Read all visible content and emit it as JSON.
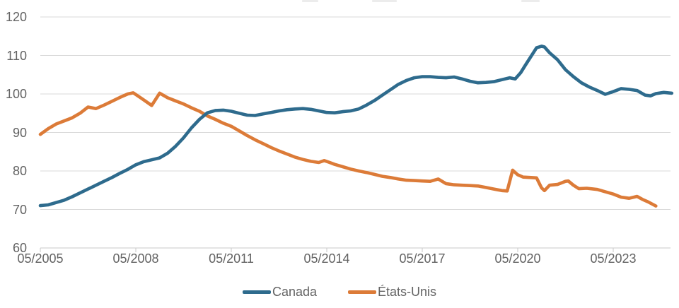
{
  "chart_data": {
    "type": "line",
    "title": "",
    "grid": "horizontal",
    "legend_position": "bottom-center",
    "ylim": [
      60,
      120
    ],
    "xlim": [
      2005.33,
      2025.13
    ],
    "y_ticks": [
      120,
      110,
      100,
      90,
      80,
      70,
      60
    ],
    "x_tick_labels": [
      "05/2005",
      "05/2008",
      "05/2011",
      "05/2014",
      "05/2017",
      "05/2020",
      "05/2023"
    ],
    "x_tick_years": [
      2005.33,
      2008.33,
      2011.33,
      2014.33,
      2017.33,
      2020.33,
      2023.33
    ],
    "series": [
      {
        "name": "États-Unis",
        "color": "#dc7b38",
        "x": [
          2005.33,
          2005.58,
          2005.83,
          2006.08,
          2006.33,
          2006.58,
          2006.83,
          2007.08,
          2007.33,
          2007.58,
          2007.83,
          2008.08,
          2008.25,
          2008.5,
          2008.83,
          2009.08,
          2009.33,
          2009.58,
          2009.83,
          2010.08,
          2010.33,
          2010.58,
          2010.83,
          2011.08,
          2011.33,
          2011.58,
          2011.83,
          2012.08,
          2012.33,
          2012.58,
          2012.83,
          2013.08,
          2013.33,
          2013.58,
          2013.83,
          2014.08,
          2014.25,
          2014.42,
          2014.58,
          2014.83,
          2015.08,
          2015.33,
          2015.58,
          2015.83,
          2016.08,
          2016.33,
          2016.58,
          2016.83,
          2017.08,
          2017.33,
          2017.58,
          2017.83,
          2018.08,
          2018.33,
          2018.58,
          2018.83,
          2019.08,
          2019.33,
          2019.58,
          2019.83,
          2020.0,
          2020.17,
          2020.33,
          2020.5,
          2020.75,
          2020.92,
          2021.08,
          2021.17,
          2021.33,
          2021.58,
          2021.83,
          2021.92,
          2022.08,
          2022.25,
          2022.5,
          2022.83,
          2023.08,
          2023.33,
          2023.58,
          2023.83,
          2024.08,
          2024.25,
          2024.42,
          2024.67
        ],
        "values": [
          89.5,
          91.0,
          92.2,
          93.0,
          93.8,
          95.0,
          96.6,
          96.2,
          97.1,
          98.1,
          99.1,
          100.0,
          100.3,
          98.9,
          97.0,
          100.2,
          99.0,
          98.2,
          97.4,
          96.4,
          95.5,
          94.3,
          93.4,
          92.4,
          91.6,
          90.4,
          89.2,
          88.1,
          87.1,
          86.1,
          85.2,
          84.4,
          83.6,
          83.0,
          82.5,
          82.2,
          82.7,
          82.2,
          81.7,
          81.1,
          80.5,
          80.0,
          79.6,
          79.1,
          78.6,
          78.3,
          77.9,
          77.6,
          77.5,
          77.4,
          77.3,
          77.9,
          76.7,
          76.4,
          76.3,
          76.2,
          76.1,
          75.7,
          75.3,
          74.9,
          74.8,
          80.2,
          79.0,
          78.4,
          78.3,
          78.2,
          75.6,
          74.9,
          76.3,
          76.5,
          77.3,
          77.4,
          76.3,
          75.4,
          75.5,
          75.2,
          74.6,
          74.0,
          73.2,
          72.9,
          73.4,
          72.6,
          72.0,
          70.9
        ]
      },
      {
        "name": "Canada",
        "color": "#2e6b8d",
        "x": [
          2005.33,
          2005.58,
          2005.83,
          2006.08,
          2006.33,
          2006.58,
          2006.83,
          2007.08,
          2007.33,
          2007.58,
          2007.83,
          2008.08,
          2008.33,
          2008.58,
          2008.83,
          2009.08,
          2009.33,
          2009.58,
          2009.83,
          2010.08,
          2010.33,
          2010.58,
          2010.83,
          2011.08,
          2011.33,
          2011.58,
          2011.83,
          2012.08,
          2012.33,
          2012.58,
          2012.83,
          2013.08,
          2013.33,
          2013.58,
          2013.83,
          2014.08,
          2014.33,
          2014.58,
          2014.83,
          2015.08,
          2015.33,
          2015.58,
          2015.83,
          2016.08,
          2016.33,
          2016.58,
          2016.83,
          2017.08,
          2017.33,
          2017.58,
          2017.83,
          2018.08,
          2018.33,
          2018.58,
          2018.83,
          2019.08,
          2019.33,
          2019.58,
          2019.83,
          2020.08,
          2020.25,
          2020.42,
          2020.58,
          2020.75,
          2020.92,
          2021.08,
          2021.17,
          2021.33,
          2021.58,
          2021.83,
          2022.08,
          2022.33,
          2022.58,
          2022.83,
          2023.08,
          2023.33,
          2023.58,
          2023.83,
          2024.08,
          2024.33,
          2024.5,
          2024.67,
          2024.92,
          2025.17
        ],
        "values": [
          71.0,
          71.2,
          71.8,
          72.4,
          73.3,
          74.3,
          75.3,
          76.3,
          77.3,
          78.3,
          79.4,
          80.4,
          81.6,
          82.4,
          82.9,
          83.4,
          84.6,
          86.4,
          88.6,
          91.2,
          93.4,
          95.1,
          95.7,
          95.8,
          95.5,
          95.0,
          94.5,
          94.4,
          94.8,
          95.2,
          95.6,
          95.9,
          96.1,
          96.2,
          96.0,
          95.6,
          95.2,
          95.1,
          95.4,
          95.6,
          96.1,
          97.1,
          98.3,
          99.7,
          101.1,
          102.5,
          103.5,
          104.2,
          104.5,
          104.5,
          104.3,
          104.2,
          104.4,
          103.9,
          103.3,
          102.9,
          103.0,
          103.2,
          103.7,
          104.2,
          103.9,
          105.5,
          107.6,
          109.8,
          112.0,
          112.4,
          112.2,
          110.7,
          108.9,
          106.3,
          104.5,
          102.9,
          101.8,
          100.9,
          99.9,
          100.6,
          101.4,
          101.2,
          100.9,
          99.7,
          99.5,
          100.1,
          100.4,
          100.2
        ]
      }
    ],
    "legend_order": [
      "Canada",
      "États-Unis"
    ]
  },
  "colors": {
    "canada_line": "#2e6b8d",
    "etats_unis_line": "#dc7b38",
    "gridline": "#d9d9d9",
    "axis_line": "#c8c8c8",
    "tick_text": "#636363"
  }
}
